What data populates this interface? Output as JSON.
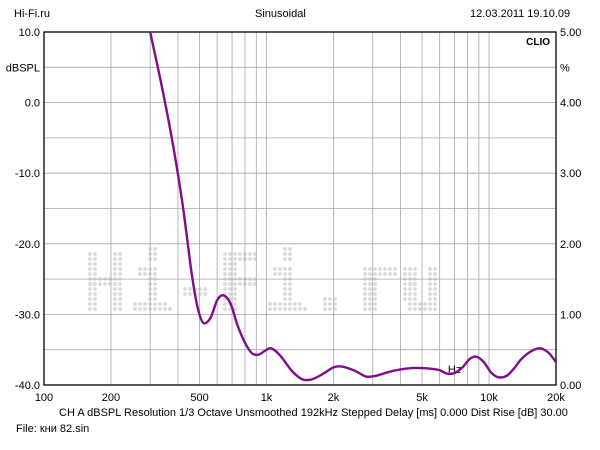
{
  "header": {
    "source": "Hi-Fi.ru",
    "mode": "Sinusoidal",
    "datetime": "12.03.2011 19.10.09"
  },
  "brand": "CLIO",
  "watermark_text": "Hi-Fi.ru",
  "footer": {
    "settings": "CH A   dBSPL   Resolution 1/3 Octave   Unsmoothed   192kHz   Stepped     Delay [ms] 0.000   Dist Rise [dB] 30.00",
    "file": "File: кни 82.sin"
  },
  "colors": {
    "curve": "#800e8a",
    "grid": "#a8a8a8",
    "frame": "#000000",
    "watermark": "#dadada"
  },
  "chart_data": {
    "type": "line",
    "x_scale": "log",
    "grid": true,
    "xlim": [
      100,
      20000
    ],
    "ylim_left": [
      -40,
      10
    ],
    "ylim_right": [
      0,
      5
    ],
    "ylabel_left": "dBSPL",
    "ylabel_right": "%",
    "xlabel": "Hz",
    "x_ticks": [
      {
        "value": 100,
        "label": "100"
      },
      {
        "value": 200,
        "label": "200"
      },
      {
        "value": 500,
        "label": "500"
      },
      {
        "value": 1000,
        "label": "1k"
      },
      {
        "value": 2000,
        "label": "2k"
      },
      {
        "value": 5000,
        "label": "5k"
      },
      {
        "value": 10000,
        "label": "10k"
      },
      {
        "value": 20000,
        "label": "20k"
      }
    ],
    "y_ticks_left": [
      {
        "value": 10,
        "label": "10.0"
      },
      {
        "value": 0,
        "label": "0.0"
      },
      {
        "value": -10,
        "label": "-10.0"
      },
      {
        "value": -20,
        "label": "-20.0"
      },
      {
        "value": -30,
        "label": "-30.0"
      },
      {
        "value": -40,
        "label": "-40.0"
      }
    ],
    "y_ticks_right": [
      {
        "value": 5,
        "label": "5.00"
      },
      {
        "value": 4,
        "label": "4.00"
      },
      {
        "value": 3,
        "label": "3.00"
      },
      {
        "value": 2,
        "label": "2.00"
      },
      {
        "value": 1,
        "label": "1.00"
      },
      {
        "value": 0,
        "label": "0.00"
      }
    ],
    "series": [
      {
        "x": [
          300,
          340,
          380,
          420,
          460,
          490,
          520,
          560,
          600,
          640,
          690,
          740,
          800,
          860,
          920,
          980,
          1050,
          1150,
          1300,
          1450,
          1600,
          1800,
          2000,
          2200,
          2500,
          2800,
          3100,
          3500,
          4000,
          4500,
          5000,
          5500,
          6000,
          6500,
          7000,
          7600,
          8200,
          8800,
          9500,
          10200,
          11000,
          12000,
          13000,
          14000,
          15500,
          17000,
          18300,
          19200,
          20000
        ],
        "values": [
          10.0,
          2.0,
          -6.0,
          -14.5,
          -24.0,
          -29.0,
          -31.2,
          -30.5,
          -28.0,
          -27.3,
          -28.5,
          -31.5,
          -34.0,
          -35.5,
          -35.7,
          -35.2,
          -34.8,
          -35.8,
          -38.0,
          -39.2,
          -39.2,
          -38.4,
          -37.5,
          -37.4,
          -38.0,
          -38.8,
          -38.7,
          -38.2,
          -37.8,
          -37.6,
          -37.6,
          -37.7,
          -37.9,
          -38.4,
          -38.3,
          -37.5,
          -36.3,
          -36.0,
          -36.8,
          -38.2,
          -38.9,
          -38.7,
          -37.6,
          -36.3,
          -35.2,
          -34.8,
          -35.3,
          -36.0,
          -36.8
        ]
      }
    ]
  }
}
